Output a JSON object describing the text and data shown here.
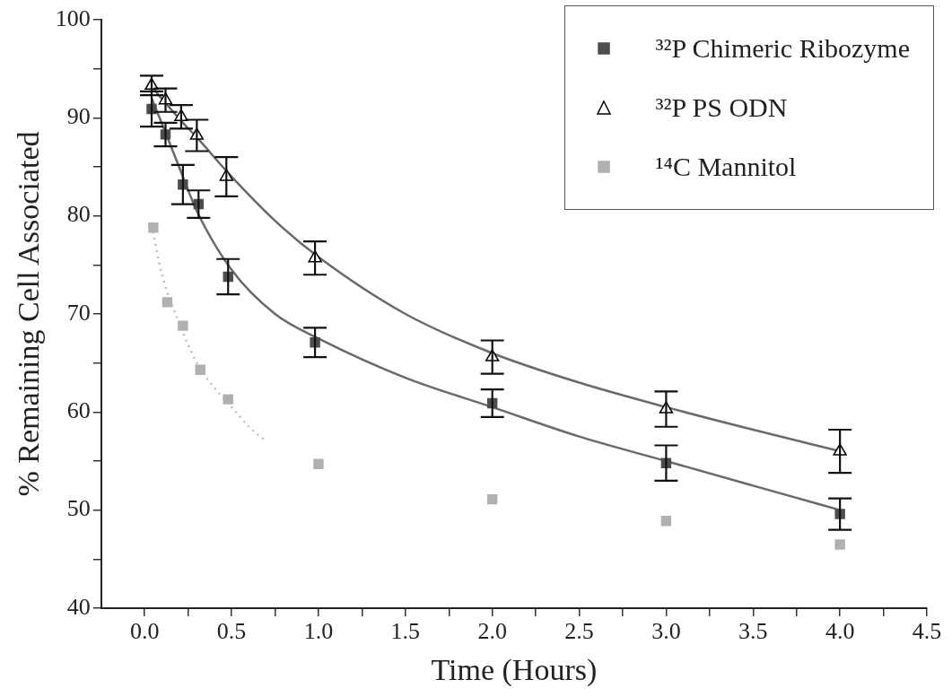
{
  "chart_data": {
    "type": "scatter",
    "xlabel": "Time (Hours)",
    "ylabel": "% Remaining Cell Associated",
    "xlim": [
      -0.25,
      4.5
    ],
    "ylim": [
      40,
      100
    ],
    "xticks": [
      {
        "value": 0,
        "label": "0.0"
      },
      {
        "value": 0.25,
        "label": null
      },
      {
        "value": 0.5,
        "label": "0.5"
      },
      {
        "value": 0.75,
        "label": null
      },
      {
        "value": 1,
        "label": "1.0"
      },
      {
        "value": 1.25,
        "label": null
      },
      {
        "value": 1.5,
        "label": "1.5"
      },
      {
        "value": 1.75,
        "label": null
      },
      {
        "value": 2,
        "label": "2.0"
      },
      {
        "value": 2.25,
        "label": null
      },
      {
        "value": 2.5,
        "label": "2.5"
      },
      {
        "value": 2.75,
        "label": null
      },
      {
        "value": 3,
        "label": "3.0"
      },
      {
        "value": 3.25,
        "label": null
      },
      {
        "value": 3.5,
        "label": "3.5"
      },
      {
        "value": 3.75,
        "label": null
      },
      {
        "value": 4,
        "label": "4.0"
      },
      {
        "value": 4.25,
        "label": null
      },
      {
        "value": 4.5,
        "label": "4.5"
      }
    ],
    "yticks": [
      40,
      {
        "value": 45,
        "label": null
      },
      50,
      {
        "value": 55,
        "label": null
      },
      60,
      {
        "value": 65,
        "label": null
      },
      70,
      {
        "value": 75,
        "label": null
      },
      80,
      {
        "value": 85,
        "label": null
      },
      90,
      {
        "value": 95,
        "label": null
      },
      100
    ],
    "grid": false,
    "legend": "top right",
    "series": [
      {
        "name": "³²P Chimeric Ribozyme",
        "color": "#4d4d4d",
        "marker": "square",
        "x": [
          0.04,
          0.12,
          0.22,
          0.31,
          0.48,
          0.98,
          2,
          3,
          4
        ],
        "values": [
          90.9,
          88.3,
          83.2,
          81.2,
          73.8,
          67.1,
          60.9,
          54.8,
          49.6
        ],
        "errors": [
          1.8,
          1.2,
          2,
          1.4,
          1.8,
          1.5,
          1.4,
          1.8,
          1.6
        ]
      },
      {
        "name": "³²P PS ODN",
        "color": "#000000",
        "marker": "triangle",
        "x": [
          0.04,
          0.12,
          0.21,
          0.3,
          0.47,
          0.98,
          2,
          3,
          4
        ],
        "values": [
          93.3,
          91.8,
          90.1,
          88.2,
          84,
          75.7,
          65.6,
          60.3,
          56
        ],
        "errors": [
          1,
          1.2,
          1.2,
          1.6,
          2,
          1.7,
          1.7,
          1.8,
          2.2
        ]
      },
      {
        "name": "¹⁴C Mannitol",
        "color": "#b0b0b0",
        "marker": "square",
        "x": [
          0.05,
          0.13,
          0.22,
          0.32,
          0.48,
          1,
          2,
          3,
          4
        ],
        "values": [
          78.8,
          71.2,
          68.8,
          64.3,
          61.3,
          54.7,
          51.1,
          48.9,
          46.5
        ]
      },
      {
        "type": "line",
        "color": "#6a6a6a",
        "marker": "none",
        "line_style": "solid",
        "x": [
          0.04,
          0.12,
          0.22,
          0.3,
          0.5,
          0.75,
          1,
          1.5,
          2,
          2.5,
          3,
          3.5,
          4
        ],
        "values": [
          92,
          88.5,
          84,
          80.5,
          74.5,
          70,
          67.5,
          63.5,
          60.5,
          57.5,
          55,
          52.5,
          50
        ]
      },
      {
        "type": "line",
        "color": "#6a6a6a",
        "marker": "none",
        "line_style": "solid",
        "x": [
          0.04,
          0.12,
          0.22,
          0.3,
          0.5,
          0.75,
          1,
          1.5,
          2,
          2.5,
          3,
          3.5,
          4
        ],
        "values": [
          93.2,
          91.5,
          89.5,
          88,
          84,
          79.5,
          75.8,
          70,
          66,
          63,
          60.5,
          58.2,
          56
        ]
      },
      {
        "type": "line",
        "color": "#bdbdbd",
        "marker": "none",
        "line_style": "dotted",
        "x": [
          0.04,
          0.1,
          0.2,
          0.3,
          0.4,
          0.5,
          0.6,
          0.7
        ],
        "values": [
          79,
          74,
          69,
          65,
          62.5,
          60.5,
          58.5,
          57
        ]
      }
    ]
  }
}
